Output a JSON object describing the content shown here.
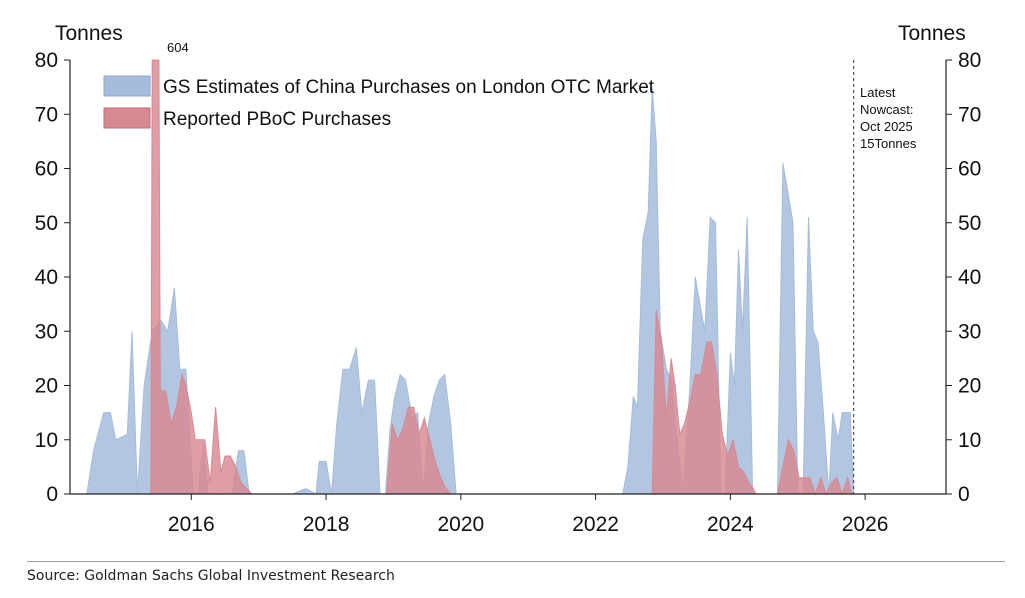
{
  "chart_data": {
    "type": "area",
    "y_unit_left": "Tonnes",
    "y_unit_right": "Tonnes",
    "ylim": [
      0,
      80
    ],
    "xlim": [
      2014.2,
      2027.2
    ],
    "yticks": [
      "0",
      "10",
      "20",
      "30",
      "40",
      "50",
      "60",
      "70",
      "80"
    ],
    "xticks": [
      {
        "value": 2016,
        "label": "2016"
      },
      {
        "value": 2018,
        "label": "2018"
      },
      {
        "value": 2020,
        "label": "2020"
      },
      {
        "value": 2022,
        "label": "2022"
      },
      {
        "value": 2024,
        "label": "2024"
      },
      {
        "value": 2026,
        "label": "2026"
      }
    ],
    "series": [
      {
        "name": "GS Estimates of China Purchases on London OTC Market",
        "color": "#a6bcdc",
        "x": [
          2014.45,
          2014.55,
          2014.7,
          2014.8,
          2014.88,
          2015.05,
          2015.12,
          2015.2,
          2015.3,
          2015.42,
          2015.55,
          2015.65,
          2015.75,
          2015.83,
          2015.92,
          2016.03,
          2016.1,
          2016.18,
          2016.25,
          2016.33,
          2016.42,
          2016.5,
          2016.6,
          2016.7,
          2016.78,
          2016.86,
          2017.2,
          2017.5,
          2017.7,
          2017.85,
          2017.9,
          2018.0,
          2018.08,
          2018.16,
          2018.25,
          2018.35,
          2018.45,
          2018.53,
          2018.63,
          2018.72,
          2018.8,
          2018.88,
          2018.95,
          2019.02,
          2019.1,
          2019.18,
          2019.28,
          2019.36,
          2019.44,
          2019.52,
          2019.6,
          2019.68,
          2019.76,
          2019.85,
          2019.93,
          2020.05,
          2020.12,
          2020.2,
          2022.4,
          2022.48,
          2022.56,
          2022.62,
          2022.7,
          2022.78,
          2022.84,
          2022.9,
          2022.96,
          2023.05,
          2023.13,
          2023.2,
          2023.3,
          2023.4,
          2023.48,
          2023.55,
          2023.62,
          2023.7,
          2023.78,
          2023.86,
          2023.92,
          2024.0,
          2024.06,
          2024.12,
          2024.18,
          2024.25,
          2024.33,
          2024.4,
          2024.46,
          2024.55,
          2024.7,
          2024.78,
          2024.85,
          2024.93,
          2025.0,
          2025.08,
          2025.16,
          2025.23,
          2025.3,
          2025.38,
          2025.46,
          2025.52,
          2025.6,
          2025.66,
          2025.72,
          2025.78,
          2025.83
        ],
        "values": [
          0,
          8,
          15,
          15,
          10,
          11,
          30,
          0,
          20,
          30,
          32,
          30,
          38,
          23,
          23,
          0,
          0,
          9,
          0,
          0,
          0,
          0,
          0,
          8,
          8,
          0,
          0,
          0,
          1,
          0,
          6,
          6,
          0,
          13,
          23,
          23,
          27,
          15,
          21,
          21,
          0,
          0,
          12,
          18,
          22,
          21,
          14,
          15,
          0,
          13,
          18,
          21,
          22,
          13,
          0,
          0,
          0,
          0,
          0,
          5,
          18,
          16,
          47,
          52,
          75,
          65,
          30,
          23,
          21,
          11,
          0,
          20,
          40,
          35,
          30,
          51,
          50,
          0,
          0,
          26,
          20,
          45,
          30,
          51,
          0,
          0,
          0,
          0,
          0,
          61,
          56,
          50,
          0,
          0,
          51,
          30,
          28,
          15,
          0,
          15,
          10,
          15,
          15,
          15,
          0
        ]
      },
      {
        "name": "Reported PBoC Purchases",
        "color": "#d88890",
        "x": [
          2015.4,
          2015.42,
          2015.44,
          2015.52,
          2015.54,
          2015.58,
          2015.62,
          2015.7,
          2015.78,
          2015.86,
          2015.92,
          2016.0,
          2016.06,
          2016.12,
          2016.2,
          2016.28,
          2016.36,
          2016.44,
          2016.5,
          2016.58,
          2016.66,
          2016.74,
          2016.82,
          2016.9,
          2016.96,
          2018.9,
          2018.98,
          2019.06,
          2019.14,
          2019.22,
          2019.3,
          2019.38,
          2019.46,
          2019.54,
          2019.62,
          2019.7,
          2019.78,
          2019.86,
          2019.92,
          2022.84,
          2022.9,
          2022.98,
          2023.05,
          2023.12,
          2023.18,
          2023.25,
          2023.32,
          2023.4,
          2023.48,
          2023.56,
          2023.65,
          2023.72,
          2023.8,
          2023.88,
          2023.96,
          2024.04,
          2024.12,
          2024.2,
          2024.28,
          2024.34,
          2024.38,
          2024.7,
          2024.78,
          2024.86,
          2024.94,
          2025.02,
          2025.1,
          2025.18,
          2025.26,
          2025.34,
          2025.42,
          2025.5,
          2025.58,
          2025.66,
          2025.74,
          2025.8
        ],
        "values": [
          0,
          80,
          80,
          80,
          19,
          19,
          19,
          13,
          16,
          22,
          20,
          15,
          10,
          10,
          10,
          2,
          16,
          4,
          7,
          7,
          5,
          2,
          1,
          0,
          0,
          0,
          13,
          10,
          12,
          16,
          16,
          11,
          14,
          10,
          6,
          3,
          1,
          0,
          0,
          0,
          34,
          28,
          14,
          25,
          20,
          11,
          13,
          17,
          22,
          22,
          28,
          28,
          22,
          11,
          7,
          10,
          5,
          4,
          2,
          1,
          0,
          0,
          5,
          10,
          8,
          3,
          3,
          3,
          0,
          3,
          0,
          2,
          3,
          0,
          3,
          0
        ]
      }
    ],
    "bar_clip_label": "604",
    "vline": {
      "x": 2025.83,
      "style": "dashed"
    },
    "annotation": [
      "Latest",
      "Nowcast:",
      "Oct 2025",
      "15Tonnes"
    ],
    "legend_position": "top-left"
  },
  "source": "Source: Goldman Sachs Global Investment Research"
}
